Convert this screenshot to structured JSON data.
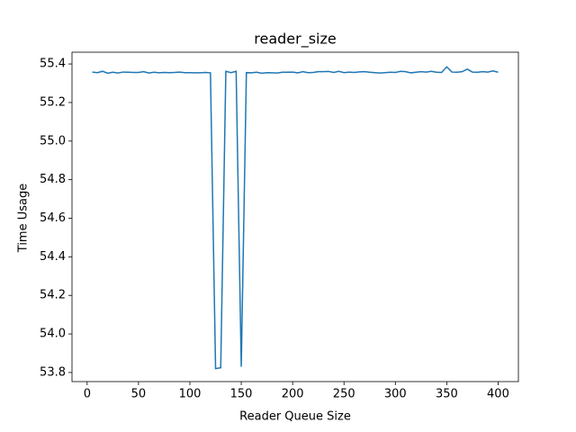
{
  "chart_data": {
    "type": "line",
    "title": "reader_size",
    "x_label": "Reader Queue Size",
    "y_label": "Time Usage",
    "x": [
      5,
      10,
      15,
      20,
      25,
      30,
      35,
      40,
      45,
      50,
      55,
      60,
      65,
      70,
      75,
      80,
      85,
      90,
      95,
      100,
      105,
      110,
      115,
      120,
      125,
      130,
      135,
      140,
      145,
      150,
      155,
      160,
      165,
      170,
      175,
      180,
      185,
      190,
      195,
      200,
      205,
      210,
      215,
      220,
      225,
      230,
      235,
      240,
      245,
      250,
      255,
      260,
      265,
      270,
      275,
      280,
      285,
      290,
      295,
      300,
      305,
      310,
      315,
      320,
      325,
      330,
      335,
      340,
      345,
      350,
      355,
      360,
      365,
      370,
      375,
      380,
      385,
      390,
      395,
      400
    ],
    "series": [
      {
        "color": "#1f77b4",
        "values": [
          55.358,
          55.355,
          55.362,
          55.352,
          55.357,
          55.353,
          55.358,
          55.357,
          55.356,
          55.356,
          55.36,
          55.353,
          55.357,
          55.354,
          55.356,
          55.355,
          55.356,
          55.358,
          55.355,
          55.355,
          55.354,
          55.354,
          55.356,
          55.354,
          53.82,
          53.825,
          55.362,
          55.355,
          55.362,
          53.83,
          55.355,
          55.354,
          55.357,
          55.352,
          55.355,
          55.354,
          55.353,
          55.357,
          55.357,
          55.358,
          55.354,
          55.36,
          55.355,
          55.356,
          55.36,
          55.36,
          55.361,
          55.356,
          55.362,
          55.355,
          55.358,
          55.356,
          55.359,
          55.36,
          55.357,
          55.355,
          55.353,
          55.355,
          55.357,
          55.356,
          55.362,
          55.36,
          55.354,
          55.357,
          55.36,
          55.358,
          55.362,
          55.357,
          55.356,
          55.385,
          55.358,
          55.357,
          55.36,
          55.373,
          55.358,
          55.357,
          55.36,
          55.358,
          55.364,
          55.357
        ]
      }
    ],
    "xlim": [
      -14.75,
      419.75
    ],
    "ylim": [
      53.753,
      55.461
    ],
    "xticks": [
      0,
      50,
      100,
      150,
      200,
      250,
      300,
      350,
      400
    ],
    "yticks": [
      53.8,
      {
        "value": 54,
        "label": "54.0"
      },
      54.2,
      54.4,
      54.6,
      54.8,
      {
        "value": 55,
        "label": "55.0"
      },
      55.2,
      55.4
    ]
  }
}
